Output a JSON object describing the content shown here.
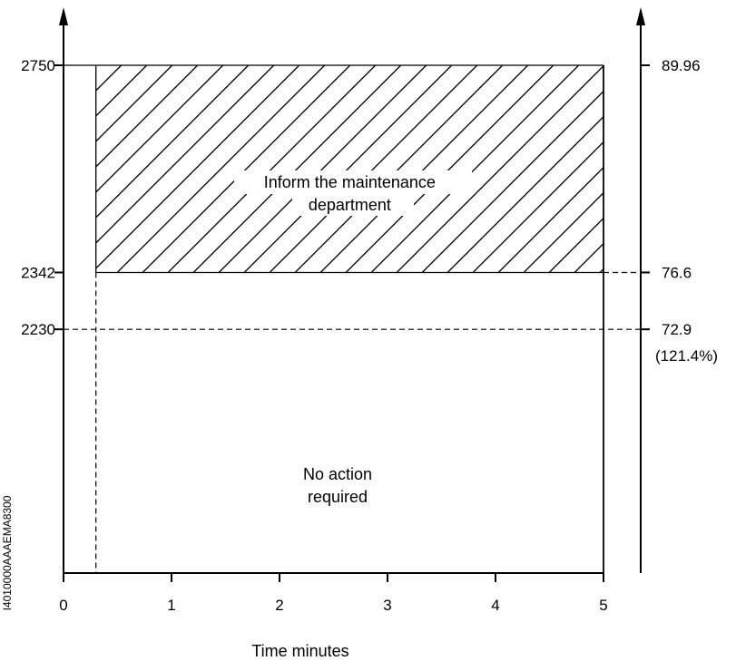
{
  "chart_data": {
    "type": "area",
    "xlabel": "Time minutes",
    "x_ticks": [
      "0",
      "1",
      "2",
      "3",
      "4",
      "5"
    ],
    "xlim": [
      0,
      5
    ],
    "ylim": [
      1750,
      2750
    ],
    "left_ticks": [
      {
        "value": 2750,
        "label": "2750"
      },
      {
        "value": 2342,
        "label": "2342"
      },
      {
        "value": 2230,
        "label": "2230"
      }
    ],
    "right_ticks": [
      {
        "value": 2750,
        "label": "89.96"
      },
      {
        "value": 2342,
        "label": "76.6"
      },
      {
        "value": 2230,
        "label": "72.9"
      }
    ],
    "right_note": "(121.4%)",
    "step_time": 0.3,
    "limit_value": 2342,
    "reference_value": 2230,
    "regions": [
      {
        "label_lines": [
          "Inform the maintenance",
          "department"
        ],
        "y_from": 2342,
        "y_to": 2750,
        "x_from": 0.3,
        "x_to": 5,
        "hatched": true
      },
      {
        "label_lines": [
          "No action",
          "required"
        ],
        "y_from": 1750,
        "y_to": 2342,
        "x_from": 0.3,
        "x_to": 5,
        "hatched": false
      }
    ],
    "side_code": "I4010000AAAEMA8300"
  }
}
